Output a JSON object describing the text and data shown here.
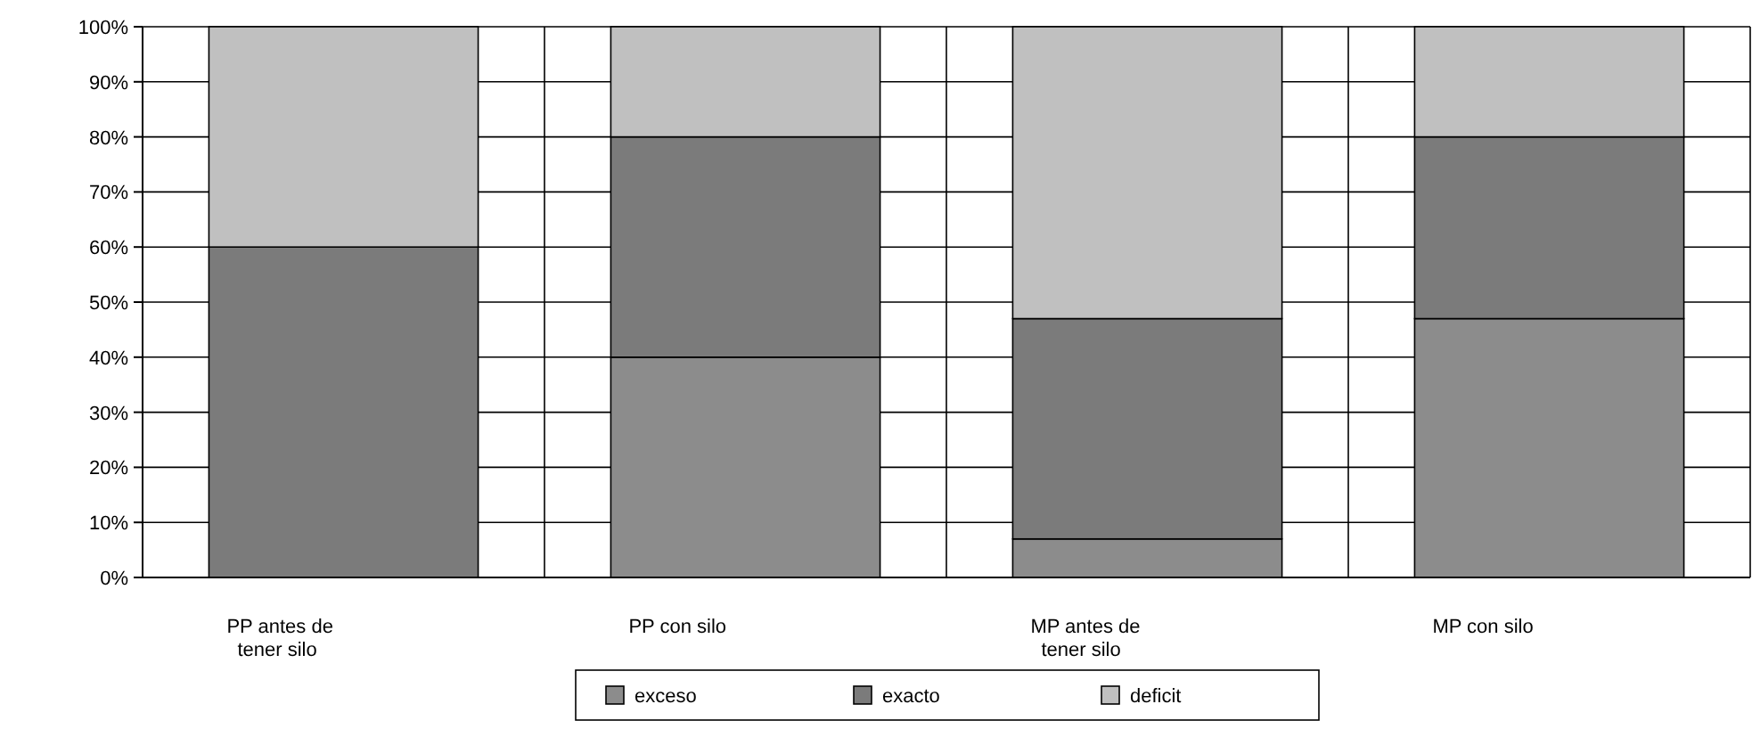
{
  "chart_data": {
    "type": "bar",
    "stacked": true,
    "categories": [
      "PP antes de tener silo",
      "PP con silo",
      "MP antes de tener silo",
      "MP con silo"
    ],
    "series": [
      {
        "name": "exceso",
        "color": "#8c8c8c",
        "values": [
          0,
          40,
          7,
          47
        ]
      },
      {
        "name": "exacto",
        "color": "#7b7b7b",
        "values": [
          60,
          40,
          40,
          33
        ]
      },
      {
        "name": "deficit",
        "color": "#c0c0c0",
        "values": [
          40,
          20,
          53,
          20
        ]
      }
    ],
    "ylim": [
      0,
      100
    ],
    "yticks": [
      {
        "value": 0,
        "label": "0%"
      },
      {
        "value": 10,
        "label": "10%"
      },
      {
        "value": 20,
        "label": "20%"
      },
      {
        "value": 30,
        "label": "30%"
      },
      {
        "value": 40,
        "label": "40%"
      },
      {
        "value": 50,
        "label": "50%"
      },
      {
        "value": 60,
        "label": "60%"
      },
      {
        "value": 70,
        "label": "70%"
      },
      {
        "value": 80,
        "label": "80%"
      },
      {
        "value": 90,
        "label": "90%"
      },
      {
        "value": 100,
        "label": "100%"
      }
    ],
    "grid": true,
    "legend": "bottom"
  }
}
